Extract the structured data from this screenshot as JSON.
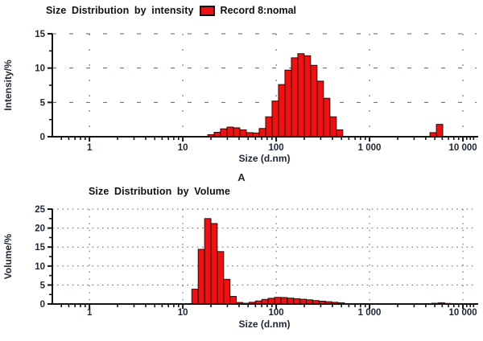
{
  "figure_label": "A",
  "chart_data": [
    {
      "type": "bar",
      "title": "Size Distribution by intensity",
      "legend": {
        "label": "Record 8:nomal",
        "swatch_color": "#ee1111",
        "position": "top"
      },
      "xlabel": "Size (d.nm)",
      "ylabel": "Intensity/%",
      "xscale": "log",
      "xlim": [
        0.4,
        14000
      ],
      "ylim": [
        0,
        15
      ],
      "yticks": [
        0,
        5,
        10,
        15
      ],
      "xticks": [
        1,
        10,
        100,
        1000,
        10000
      ],
      "xtick_labels": [
        "1",
        "10",
        "100",
        "1 000",
        "10 000"
      ],
      "grid": "dashed",
      "bar_color": "#ee1111",
      "bars": [
        [
          20,
          0.3
        ],
        [
          23.4,
          0.65
        ],
        [
          27.4,
          1.15
        ],
        [
          32.1,
          1.4
        ],
        [
          37.7,
          1.3
        ],
        [
          44.2,
          1.0
        ],
        [
          51.8,
          0.6
        ],
        [
          60.7,
          0.55
        ],
        [
          71.1,
          1.2
        ],
        [
          83.4,
          2.9
        ],
        [
          97.7,
          5.2
        ],
        [
          114.5,
          7.6
        ],
        [
          134.2,
          9.7
        ],
        [
          157.3,
          11.5
        ],
        [
          184.3,
          12.1
        ],
        [
          216,
          11.8
        ],
        [
          253.2,
          10.4
        ],
        [
          296.7,
          8.1
        ],
        [
          347.7,
          5.6
        ],
        [
          407.5,
          2.9
        ],
        [
          477.6,
          1.0
        ],
        [
          4800,
          0.6
        ],
        [
          5620,
          1.8
        ]
      ]
    },
    {
      "type": "bar",
      "title": "Size Distribution by Volume",
      "xlabel": "Size (d.nm)",
      "ylabel": "Volume/%",
      "xscale": "log",
      "xlim": [
        0.4,
        14000
      ],
      "ylim": [
        0,
        25
      ],
      "yticks": [
        0,
        5,
        10,
        15,
        20,
        25
      ],
      "xticks": [
        1,
        10,
        100,
        1000,
        10000
      ],
      "xtick_labels": [
        "1",
        "10",
        "100",
        "1 000",
        "10 000"
      ],
      "grid": "dotted",
      "bar_color": "#ee1111",
      "bars": [
        [
          13.5,
          3.9
        ],
        [
          15.8,
          14.4
        ],
        [
          18.5,
          22.5
        ],
        [
          21.6,
          21.2
        ],
        [
          25.3,
          13.8
        ],
        [
          29.6,
          6.5
        ],
        [
          34.6,
          2.0
        ],
        [
          40.5,
          0.4
        ],
        [
          47.4,
          0.2
        ],
        [
          55.4,
          0.45
        ],
        [
          64.8,
          0.8
        ],
        [
          75.8,
          1.2
        ],
        [
          88.7,
          1.5
        ],
        [
          103.8,
          1.75
        ],
        [
          121.4,
          1.7
        ],
        [
          142,
          1.55
        ],
        [
          166.2,
          1.4
        ],
        [
          194.4,
          1.25
        ],
        [
          227.4,
          1.1
        ],
        [
          266.1,
          0.9
        ],
        [
          311.3,
          0.75
        ],
        [
          364.2,
          0.6
        ],
        [
          426.1,
          0.45
        ],
        [
          498.5,
          0.3
        ],
        [
          5000,
          0.2
        ],
        [
          5900,
          0.3
        ],
        [
          6900,
          0.15
        ]
      ]
    }
  ]
}
